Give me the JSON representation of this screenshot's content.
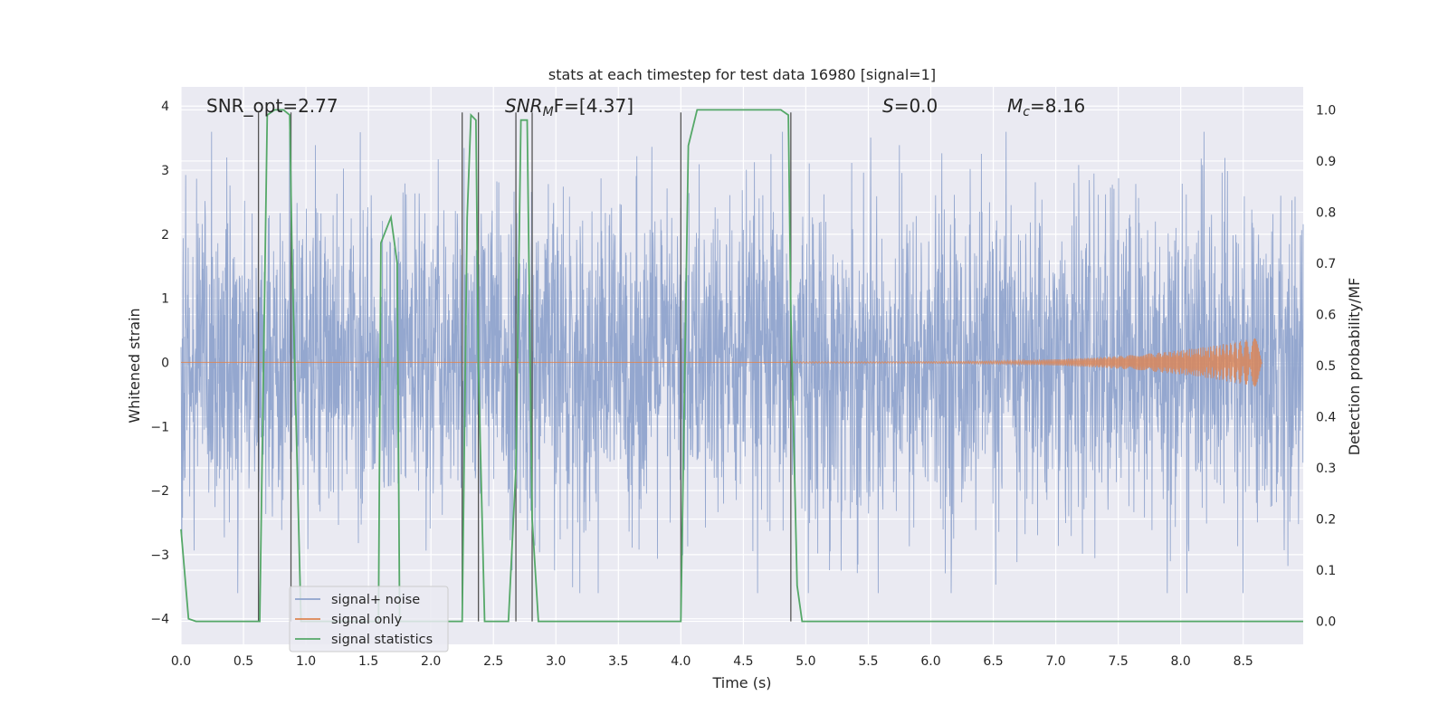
{
  "chart_data": {
    "type": "line",
    "title": "stats at each timestep for test data 16980 [signal=1]",
    "xlabel": "Time (s)",
    "ylabel": "Whitened strain",
    "y2label": "Detection probability/MF",
    "xlim": [
      0.0,
      8.98
    ],
    "ylim": [
      -4.4,
      4.3
    ],
    "y2lim": [
      -0.045,
      1.045
    ],
    "xticks": [
      "0.0",
      "0.5",
      "1.0",
      "1.5",
      "2.0",
      "2.5",
      "3.0",
      "3.5",
      "4.0",
      "4.5",
      "5.0",
      "5.5",
      "6.0",
      "6.5",
      "7.0",
      "7.5",
      "8.0",
      "8.5"
    ],
    "yticks": [
      "4",
      "3",
      "2",
      "1",
      "0",
      "−1",
      "−2",
      "−3",
      "−4"
    ],
    "y2ticks": [
      "1.0",
      "0.9",
      "0.8",
      "0.7",
      "0.6",
      "0.5",
      "0.4",
      "0.3",
      "0.2",
      "0.1",
      "0.0"
    ],
    "grid": true,
    "legend_position": "lower-left",
    "annotations": {
      "snr_opt": "SNR_opt=2.77",
      "snr_mf_sym": "SNR",
      "snr_mf_sub": "M",
      "snr_mf_rest": "F=[4.37]",
      "s_sym": "S",
      "s_rest": "=0.0",
      "mc_sym": "M",
      "mc_sub": "c",
      "mc_rest": "=8.16"
    },
    "series": [
      {
        "name": "signal+ noise",
        "axis": "left",
        "color": "#8fa3cc",
        "description": "dense whitened noise trace, values mostly within ±2 with spikes to about ±3.5",
        "envelope": {
          "typical_abs": 2.0,
          "max_abs": 3.6
        }
      },
      {
        "name": "signal only",
        "axis": "left",
        "color": "#dd8452",
        "chirp": {
          "t_start": 4.9,
          "t_end": 8.65,
          "amp_start": 0.01,
          "amp_end": 0.4
        }
      },
      {
        "name": "signal statistics",
        "axis": "right",
        "color": "#55a868",
        "x": [
          0.0,
          0.06,
          0.12,
          0.62,
          0.63,
          0.69,
          0.75,
          0.82,
          0.87,
          0.89,
          0.96,
          1.0,
          1.58,
          1.6,
          1.68,
          1.73,
          1.75,
          2.23,
          2.25,
          2.29,
          2.32,
          2.36,
          2.38,
          2.43,
          2.48,
          2.59,
          2.62,
          2.68,
          2.72,
          2.77,
          2.81,
          2.86,
          2.92,
          3.98,
          4.0,
          4.06,
          4.13,
          4.2,
          4.3,
          4.6,
          4.8,
          4.86,
          4.88,
          4.93,
          4.97,
          5.0,
          8.98
        ],
        "y": [
          0.18,
          0.005,
          0.0,
          0.0,
          0.0,
          0.99,
          1.0,
          1.0,
          0.99,
          0.7,
          0.0,
          0.0,
          0.0,
          0.74,
          0.79,
          0.7,
          0.0,
          0.0,
          0.0,
          0.79,
          0.99,
          0.98,
          0.5,
          0.0,
          0.0,
          0.0,
          0.0,
          0.3,
          0.98,
          0.98,
          0.2,
          0.0,
          0.0,
          0.0,
          0.0,
          0.93,
          1.0,
          1.0,
          1.0,
          1.0,
          1.0,
          0.99,
          0.6,
          0.07,
          0.0,
          0.0,
          0.0
        ]
      }
    ],
    "vertical_lines": {
      "color": "#555555",
      "x": [
        0.62,
        0.88,
        2.25,
        2.38,
        2.68,
        2.81,
        4.0,
        4.88
      ],
      "y_top": 0.995,
      "y_bottom": 0.0
    }
  }
}
